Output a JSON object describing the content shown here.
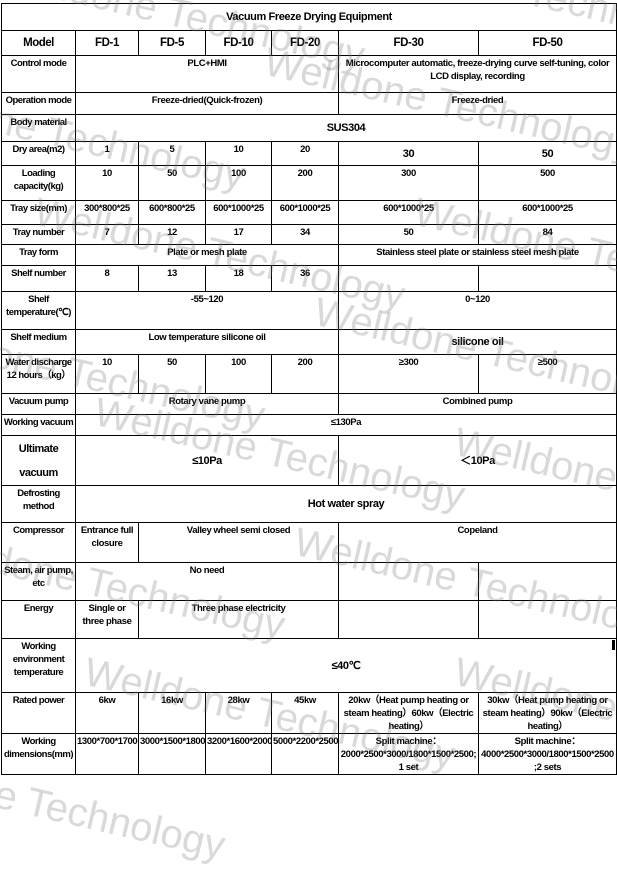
{
  "watermark": "Welldone Technology",
  "title": "Vacuum Freeze Drying Equipment",
  "rows": [
    {
      "label": "Model",
      "cls": "hdr",
      "cells": [
        {
          "t": "FD-1"
        },
        {
          "t": "FD-5"
        },
        {
          "t": "FD-10"
        },
        {
          "t": "FD-20"
        },
        {
          "t": "FD-30"
        },
        {
          "t": "FD-50"
        }
      ]
    },
    {
      "label": "Control mode",
      "cells": [
        {
          "t": "PLC+HMI",
          "span": 4
        },
        {
          "t": "Microcomputer automatic, freeze-drying curve self-tuning, color LCD display, recording",
          "span": 2
        }
      ]
    },
    {
      "label": "Operation mode",
      "cells": [
        {
          "t": "Freeze-dried(Quick-frozen)",
          "span": 4
        },
        {
          "t": "Freeze-dried",
          "span": 2
        }
      ]
    },
    {
      "label": "Body material",
      "cells": [
        {
          "t": "SUS304",
          "span": 6,
          "cls": "big"
        }
      ]
    },
    {
      "label": "Dry area(m2)",
      "cells": [
        {
          "t": "1"
        },
        {
          "t": "5"
        },
        {
          "t": "10"
        },
        {
          "t": "20"
        },
        {
          "t": "30",
          "cls": "big"
        },
        {
          "t": "50",
          "cls": "big"
        }
      ]
    },
    {
      "label": "Loading capacity(kg)",
      "cells": [
        {
          "t": "10"
        },
        {
          "t": "50"
        },
        {
          "t": "100"
        },
        {
          "t": "200"
        },
        {
          "t": "300"
        },
        {
          "t": "500"
        }
      ]
    },
    {
      "label": "Tray size(mm)",
      "cells": [
        {
          "t": "300*800*25"
        },
        {
          "t": "600*800*25"
        },
        {
          "t": "600*1000*25"
        },
        {
          "t": "600*1000*25"
        },
        {
          "t": "600*1000*25"
        },
        {
          "t": "600*1000*25"
        }
      ]
    },
    {
      "label": "Tray number",
      "cells": [
        {
          "t": "7"
        },
        {
          "t": "12"
        },
        {
          "t": "17"
        },
        {
          "t": "34"
        },
        {
          "t": "50"
        },
        {
          "t": "84"
        }
      ]
    },
    {
      "label": "Tray form",
      "cells": [
        {
          "t": "Plate or mesh plate",
          "span": 4
        },
        {
          "t": "Stainless steel plate or stainless steel mesh plate",
          "span": 2
        }
      ]
    },
    {
      "label": "Shelf number",
      "cells": [
        {
          "t": "8"
        },
        {
          "t": "13"
        },
        {
          "t": "18"
        },
        {
          "t": "36"
        },
        {
          "t": ""
        },
        {
          "t": ""
        }
      ]
    },
    {
      "label": "Shelf temperature(℃)",
      "cells": [
        {
          "t": "-55~120",
          "span": 4
        },
        {
          "t": "0~120",
          "span": 2
        }
      ]
    },
    {
      "label": "Shelf medium",
      "cells": [
        {
          "t": "Low temperature silicone oil",
          "span": 4
        },
        {
          "t": "silicone oil",
          "span": 2,
          "cls": "big"
        }
      ]
    },
    {
      "label": "Water discharge 12 hours（kg）",
      "cells": [
        {
          "t": "10"
        },
        {
          "t": "50"
        },
        {
          "t": "100"
        },
        {
          "t": "200"
        },
        {
          "t": "≥300"
        },
        {
          "t": "≥500"
        }
      ]
    },
    {
      "label": "Vacuum pump",
      "cells": [
        {
          "t": "Rotary vane pump",
          "span": 4
        },
        {
          "t": "Combined pump",
          "span": 2
        }
      ]
    },
    {
      "label": "Working vacuum",
      "cells": [
        {
          "t": "≤130Pa",
          "span": 6
        }
      ]
    },
    {
      "label": "Ultimate vacuum",
      "lcls": "ult",
      "cells": [
        {
          "t": "≤10Pa",
          "span": 4,
          "cls": "big"
        },
        {
          "t": "＜10Pa",
          "span": 2,
          "cls": "big"
        }
      ]
    },
    {
      "label": "Defrosting method",
      "cells": [
        {
          "t": "Hot water spray",
          "span": 6,
          "cls": "big"
        }
      ]
    },
    {
      "label": "Compressor",
      "cells": [
        {
          "t": "Entrance full closure"
        },
        {
          "t": "Valley wheel semi closed",
          "span": 3
        },
        {
          "t": "Copeland",
          "span": 2
        }
      ]
    },
    {
      "label": "Steam, air pump, etc",
      "cells": [
        {
          "t": "No need",
          "span": 4
        },
        {
          "t": ""
        },
        {
          "t": ""
        }
      ]
    },
    {
      "label": "Energy",
      "cells": [
        {
          "t": "Single or three phase"
        },
        {
          "t": "Three phase electricity",
          "span": 3
        },
        {
          "t": ""
        },
        {
          "t": ""
        }
      ]
    },
    {
      "label": "Working environment temperature",
      "cells": [
        {
          "t": "≤40℃",
          "span": 6,
          "cls": "big"
        }
      ]
    },
    {
      "label": "Rated power",
      "cells": [
        {
          "t": "6kw"
        },
        {
          "t": "16kw"
        },
        {
          "t": "28kw"
        },
        {
          "t": "45kw"
        },
        {
          "t": "20kw（Heat pump heating or steam heating）60kw（Electric heating）"
        },
        {
          "t": "30kw（Heat pump heating or steam heating）90kw（Electric heating）"
        }
      ]
    },
    {
      "label": "Working dimensions(mm)",
      "cells": [
        {
          "t": "1300*700*1700"
        },
        {
          "t": "3000*1500*1800"
        },
        {
          "t": "3200*1600*2000"
        },
        {
          "t": "5000*2200*2500"
        },
        {
          "t": "Split machine：2000*2500*3000/1800*1500*2500; 1 set"
        },
        {
          "t": "Split machine：4000*2500*3000/1800*1500*2500 ;2 sets"
        }
      ]
    }
  ]
}
